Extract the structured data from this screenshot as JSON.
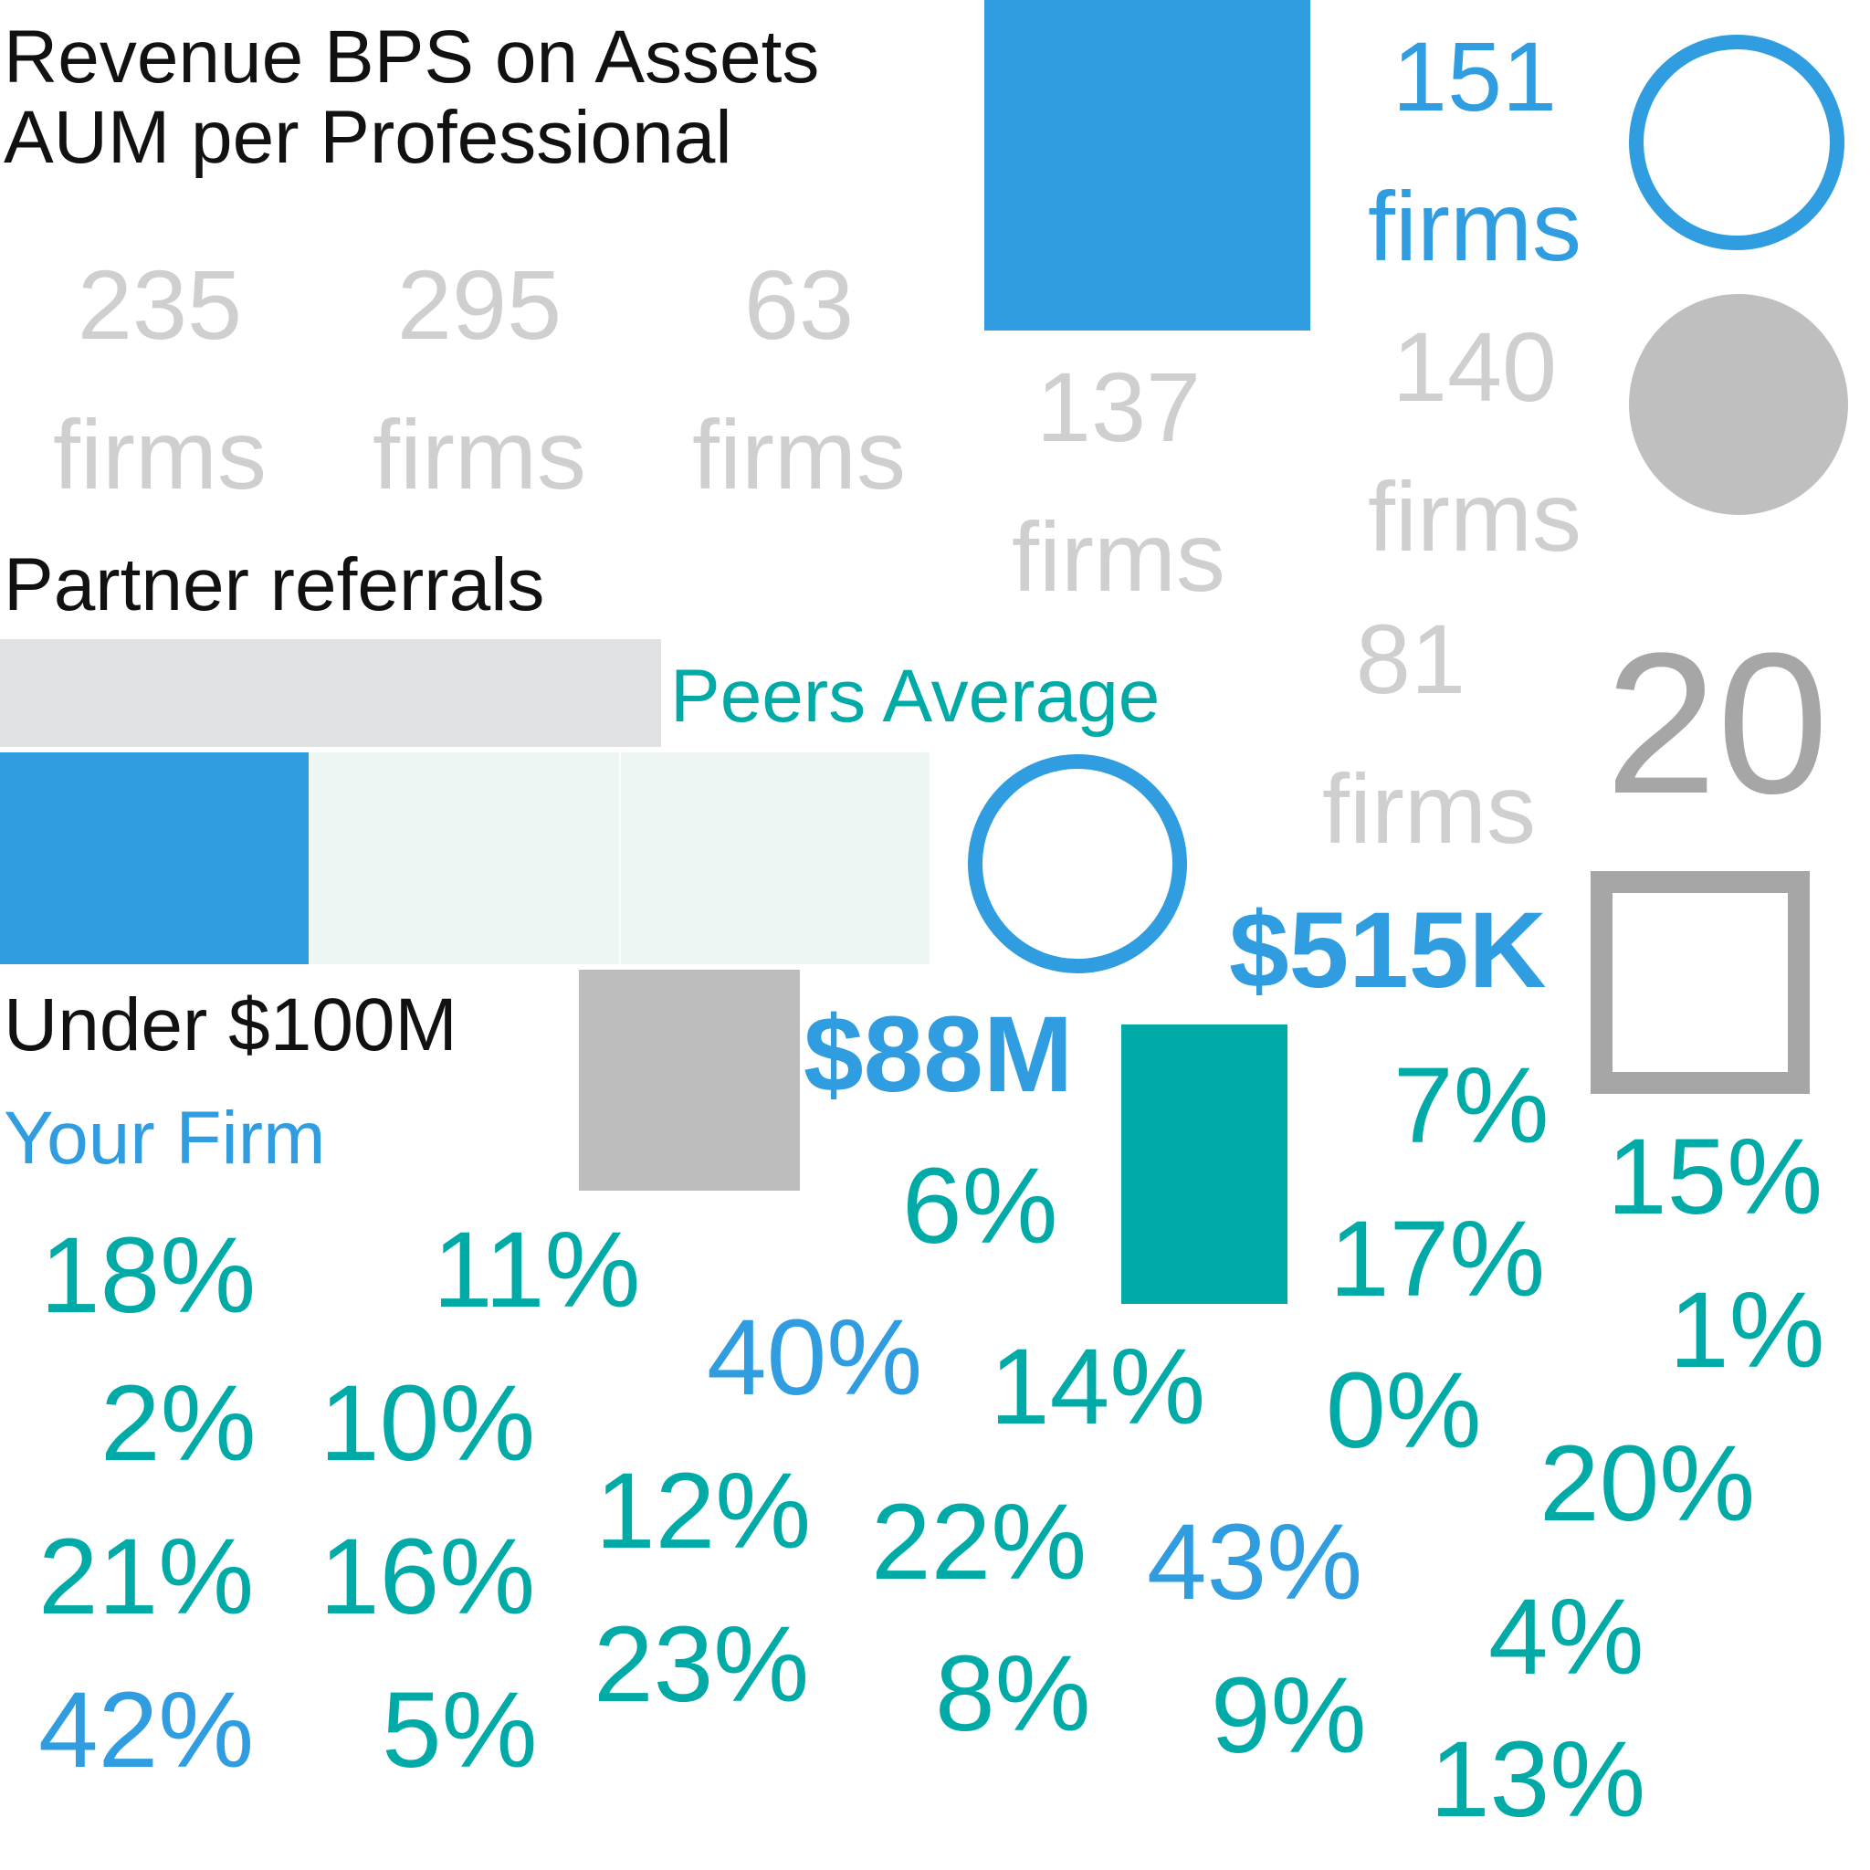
{
  "colors": {
    "blue": "#2f9de0",
    "teal": "#00aaa6",
    "light_gray_text": "#cfcfcf",
    "mid_gray": "#a6a6a6",
    "gray_fill": "#bdbdbd",
    "pale_gray_bar": "#e0e1e2",
    "pale_mint": "#eef6f4",
    "text_dark": "#111111"
  },
  "labels": {
    "revenue_bps": "Revenue BPS on Assets",
    "aum_per_professional": "AUM per Professional",
    "partner_referrals": "Partner referrals",
    "peers_average": "Peers Average",
    "under_100m": "Under $100M",
    "your_firm": "Your Firm"
  },
  "firm_counts": {
    "c235": "235",
    "c295": "295",
    "c63": "63",
    "c137": "137",
    "c151": "151",
    "c140": "140",
    "c81": "81",
    "unit": "firms"
  },
  "big_values": {
    "twenty": "20",
    "k515": "$515K",
    "m88": "$88M"
  },
  "percentages": {
    "p18": "18%",
    "p11": "11%",
    "p2": "2%",
    "p10": "10%",
    "p21": "21%",
    "p16": "16%",
    "p42": "42%",
    "p5": "5%",
    "p40": "40%",
    "p12": "12%",
    "p23": "23%",
    "p6": "6%",
    "p14": "14%",
    "p22": "22%",
    "p8": "8%",
    "p7": "7%",
    "p17": "17%",
    "p0": "0%",
    "p43": "43%",
    "p9": "9%",
    "p15": "15%",
    "p1": "1%",
    "p20": "20%",
    "p4": "4%",
    "p13": "13%"
  }
}
